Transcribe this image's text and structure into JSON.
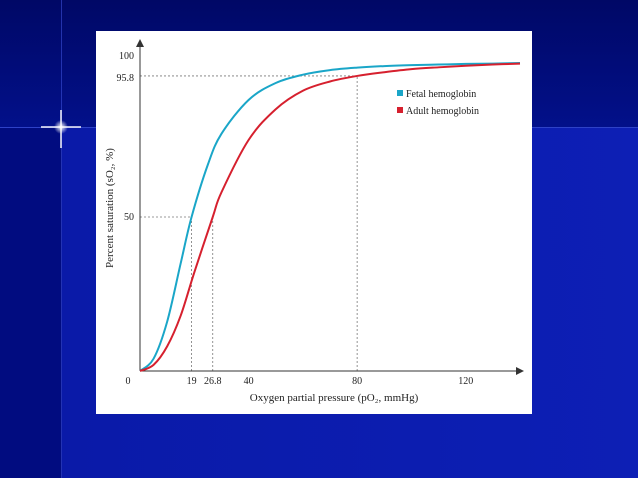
{
  "chart_data": {
    "type": "line",
    "xlabel": "Oxygen partial pressure (pO₂, mmHg)",
    "ylabel": "Percent saturation (sO₂, %)",
    "xlim": [
      0,
      140
    ],
    "ylim": [
      0,
      100
    ],
    "x_ticks": [
      "0",
      "19",
      "26.8",
      "40",
      "80",
      "120"
    ],
    "y_ticks": [
      "50",
      "95.8",
      "100"
    ],
    "grid": false,
    "legend": "top-right",
    "series": [
      {
        "name": "Fetal hemoglobin",
        "color": "#1aa6c8",
        "x": [
          0,
          5,
          10,
          15,
          19,
          25,
          30,
          40,
          50,
          60,
          70,
          80,
          90,
          100,
          110,
          120,
          130,
          140
        ],
        "y": [
          0,
          4,
          16,
          35,
          50,
          67,
          77,
          88,
          93.5,
          96.2,
          97.7,
          98.5,
          99,
          99.3,
          99.5,
          99.7,
          99.8,
          100
        ]
      },
      {
        "name": "Adult hemoglobin",
        "color": "#d6202e",
        "x": [
          0,
          5,
          10,
          15,
          20,
          26.8,
          30,
          40,
          50,
          60,
          70,
          80,
          90,
          100,
          110,
          120,
          130,
          140
        ],
        "y": [
          0,
          2,
          8,
          18,
          32,
          50,
          58,
          75,
          85,
          91,
          94,
          95.8,
          97,
          98,
          98.6,
          99.1,
          99.5,
          99.8
        ]
      }
    ],
    "reference_lines": [
      {
        "axis": "x",
        "value": 19
      },
      {
        "axis": "x",
        "value": 26.8
      },
      {
        "axis": "x",
        "value": 80
      },
      {
        "axis": "y",
        "value": 50
      },
      {
        "axis": "y",
        "value": 95.8
      }
    ]
  }
}
